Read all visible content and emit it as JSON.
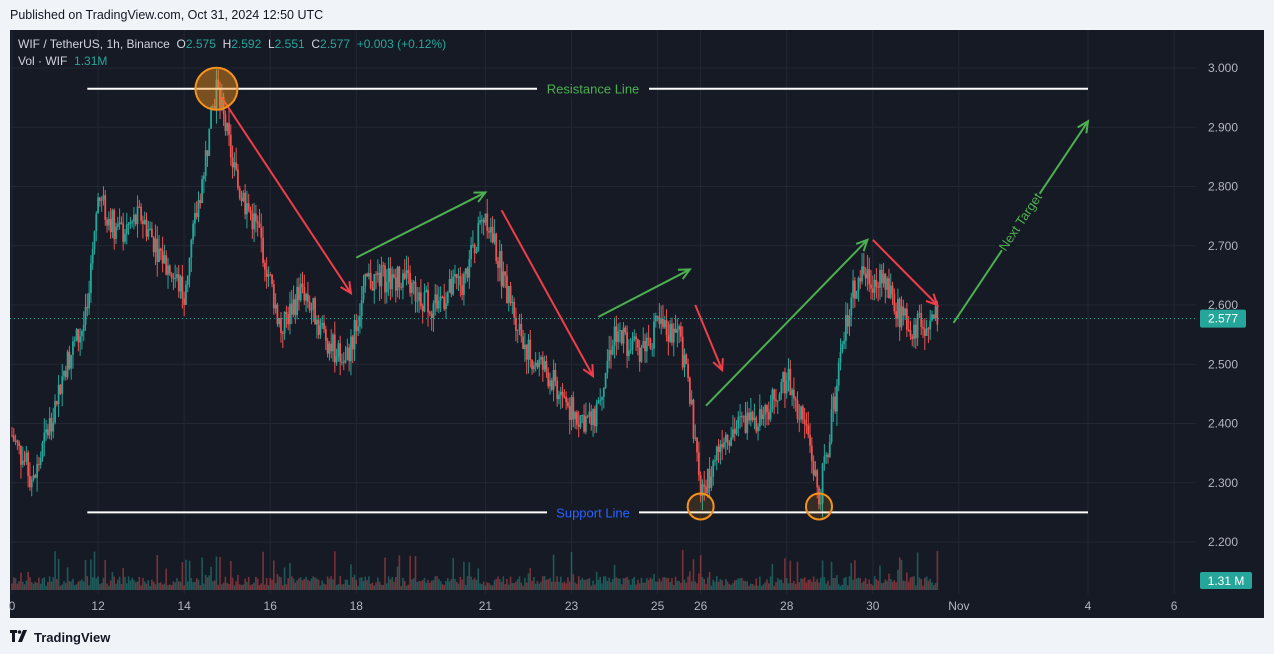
{
  "header": {
    "published": "Published on TradingView.com, Oct 31, 2024 12:50 UTC"
  },
  "legend": {
    "symbol": "WIF / TetherUS, 1h, Binance",
    "o_label": "O",
    "o_value": "2.575",
    "h_label": "H",
    "h_value": "2.592",
    "l_label": "L",
    "l_value": "2.551",
    "c_label": "C",
    "c_value": "2.577",
    "change": "+0.003 (+0.12%)",
    "vol_label": "Vol · WIF",
    "vol_value": "1.31M"
  },
  "price_badge": "2.577",
  "volume_badge": "1.31 M",
  "footer": {
    "brand": "TradingView"
  },
  "colors": {
    "up": "#26a69a",
    "down": "#ef5350",
    "background": "#161a25",
    "grid": "#232734",
    "annotation_red": "#ef3e4a",
    "annotation_green": "#4caf50",
    "support_label": "#2962ff",
    "marker": "#f7931a"
  },
  "annotations": {
    "resistance_label": "Resistance Line",
    "support_label": "Support Line",
    "target_label": "Next Target"
  },
  "chart_data": {
    "type": "candlestick",
    "symbol": "WIF / TetherUS",
    "interval": "1h",
    "exchange": "Binance",
    "ylim": [
      2.15,
      3.05
    ],
    "y_ticks": [
      "3.000",
      "2.900",
      "2.800",
      "2.700",
      "2.600",
      "2.500",
      "2.400",
      "2.300",
      "2.200"
    ],
    "x_ticks": [
      "0",
      "12",
      "14",
      "16",
      "18",
      "21",
      "23",
      "25",
      "26",
      "28",
      "30",
      "Nov",
      "4",
      "6"
    ],
    "last_price": 2.577,
    "resistance": 2.965,
    "support": 2.25,
    "close_path": [
      {
        "x": "Oct 10 00:00",
        "y": 2.38
      },
      {
        "x": "Oct 10 12:00",
        "y": 2.3
      },
      {
        "x": "Oct 11 06:00",
        "y": 2.5
      },
      {
        "x": "Oct 11 18:00",
        "y": 2.58
      },
      {
        "x": "Oct 12 00:00",
        "y": 2.78
      },
      {
        "x": "Oct 12 12:00",
        "y": 2.72
      },
      {
        "x": "Oct 13 00:00",
        "y": 2.75
      },
      {
        "x": "Oct 13 12:00",
        "y": 2.68
      },
      {
        "x": "Oct 14 00:00",
        "y": 2.62
      },
      {
        "x": "Oct 14 12:00",
        "y": 2.85
      },
      {
        "x": "Oct 14 18:00",
        "y": 2.97
      },
      {
        "x": "Oct 15 06:00",
        "y": 2.8
      },
      {
        "x": "Oct 15 18:00",
        "y": 2.72
      },
      {
        "x": "Oct 16 06:00",
        "y": 2.56
      },
      {
        "x": "Oct 16 18:00",
        "y": 2.63
      },
      {
        "x": "Oct 17 06:00",
        "y": 2.55
      },
      {
        "x": "Oct 17 18:00",
        "y": 2.5
      },
      {
        "x": "Oct 18 06:00",
        "y": 2.64
      },
      {
        "x": "Oct 19 00:00",
        "y": 2.65
      },
      {
        "x": "Oct 19 18:00",
        "y": 2.6
      },
      {
        "x": "Oct 20 12:00",
        "y": 2.64
      },
      {
        "x": "Oct 21 00:00",
        "y": 2.76
      },
      {
        "x": "Oct 21 12:00",
        "y": 2.62
      },
      {
        "x": "Oct 22 00:00",
        "y": 2.52
      },
      {
        "x": "Oct 22 12:00",
        "y": 2.48
      },
      {
        "x": "Oct 23 00:00",
        "y": 2.42
      },
      {
        "x": "Oct 23 12:00",
        "y": 2.4
      },
      {
        "x": "Oct 24 00:00",
        "y": 2.56
      },
      {
        "x": "Oct 24 12:00",
        "y": 2.52
      },
      {
        "x": "Oct 25 00:00",
        "y": 2.56
      },
      {
        "x": "Oct 25 12:00",
        "y": 2.55
      },
      {
        "x": "Oct 25 18:00",
        "y": 2.45
      },
      {
        "x": "Oct 26 00:00",
        "y": 2.27
      },
      {
        "x": "Oct 26 12:00",
        "y": 2.38
      },
      {
        "x": "Oct 27 00:00",
        "y": 2.4
      },
      {
        "x": "Oct 27 12:00",
        "y": 2.42
      },
      {
        "x": "Oct 28 00:00",
        "y": 2.48
      },
      {
        "x": "Oct 28 12:00",
        "y": 2.38
      },
      {
        "x": "Oct 28 18:00",
        "y": 2.27
      },
      {
        "x": "Oct 29 06:00",
        "y": 2.5
      },
      {
        "x": "Oct 29 12:00",
        "y": 2.62
      },
      {
        "x": "Oct 29 18:00",
        "y": 2.66
      },
      {
        "x": "Oct 30 06:00",
        "y": 2.63
      },
      {
        "x": "Oct 30 18:00",
        "y": 2.57
      },
      {
        "x": "Oct 31 00:00",
        "y": 2.56
      },
      {
        "x": "Oct 31 12:00",
        "y": 2.577
      }
    ],
    "touch_markers": [
      {
        "x": "Oct 14 18:00",
        "y": 2.965
      },
      {
        "x": "Oct 26 00:00",
        "y": 2.26
      },
      {
        "x": "Oct 28 18:00",
        "y": 2.26
      }
    ],
    "trend_arrows": [
      {
        "color": "red",
        "from": {
          "x": "Oct 14 21:00",
          "y": 2.95
        },
        "to": {
          "x": "Oct 17 21:00",
          "y": 2.62
        }
      },
      {
        "color": "green",
        "from": {
          "x": "Oct 18 00:00",
          "y": 2.68
        },
        "to": {
          "x": "Oct 21 00:00",
          "y": 2.79
        }
      },
      {
        "color": "red",
        "from": {
          "x": "Oct 21 09:00",
          "y": 2.76
        },
        "to": {
          "x": "Oct 23 12:00",
          "y": 2.48
        }
      },
      {
        "color": "green",
        "from": {
          "x": "Oct 23 15:00",
          "y": 2.58
        },
        "to": {
          "x": "Oct 25 18:00",
          "y": 2.66
        }
      },
      {
        "color": "red",
        "from": {
          "x": "Oct 25 21:00",
          "y": 2.6
        },
        "to": {
          "x": "Oct 26 12:00",
          "y": 2.49
        }
      },
      {
        "color": "green",
        "from": {
          "x": "Oct 26 03:00",
          "y": 2.43
        },
        "to": {
          "x": "Oct 29 21:00",
          "y": 2.71
        }
      },
      {
        "color": "red",
        "from": {
          "x": "Oct 30 00:00",
          "y": 2.71
        },
        "to": {
          "x": "Oct 31 12:00",
          "y": 2.6
        }
      },
      {
        "color": "green",
        "from": {
          "x": "Oct 31 21:00",
          "y": 2.57
        },
        "to": {
          "x": "Nov 4 00:00",
          "y": 2.91
        }
      }
    ]
  }
}
